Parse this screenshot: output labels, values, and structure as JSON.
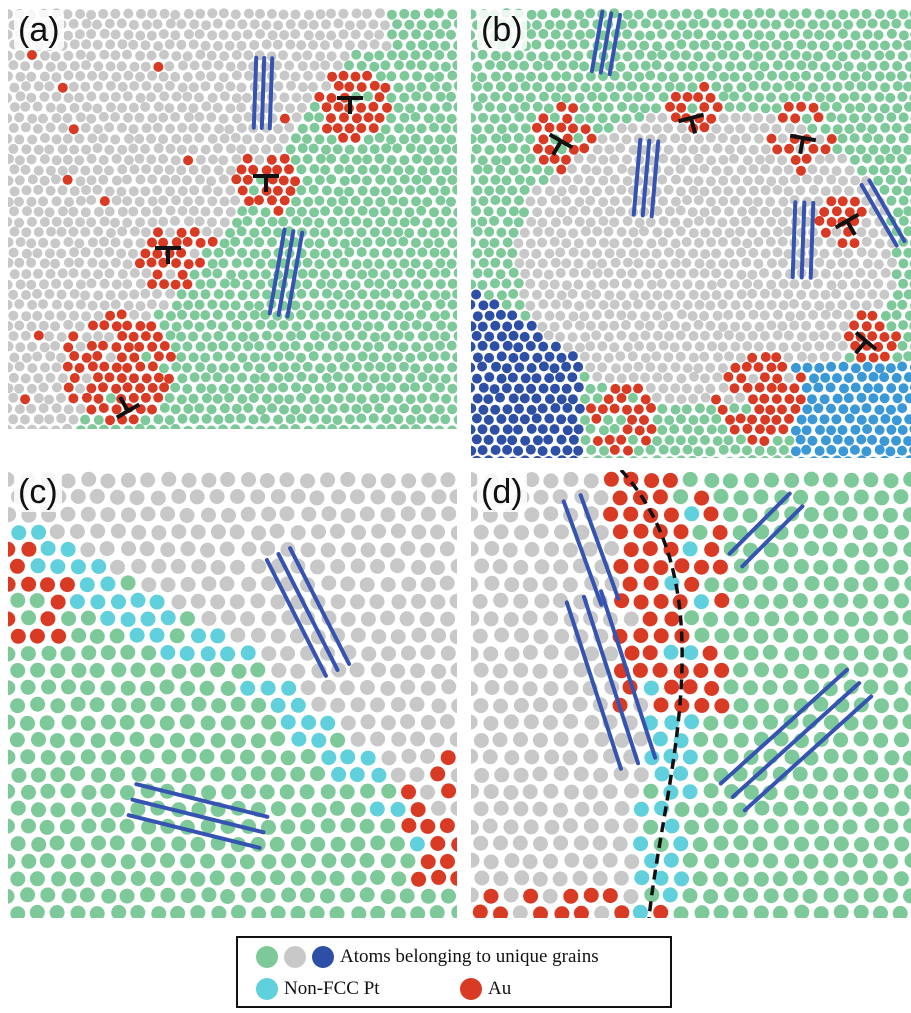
{
  "panels": [
    {
      "label": "(a)"
    },
    {
      "label": "(b)"
    },
    {
      "label": "(c)"
    },
    {
      "label": "(d)"
    }
  ],
  "legend": {
    "grains_label": "Atoms belonging to unique grains",
    "nonfcc_label": "Non-FCC Pt",
    "au_label": "Au"
  },
  "colors": {
    "grain_green": "#7ec99a",
    "grain_gray": "#c8c8c8",
    "grain_blue": "#2d4fa6",
    "grain_lightblue": "#3a98d6",
    "nonfcc_cyan": "#5fd0dc",
    "au_red": "#d93a24",
    "line_blue": "#3553b0"
  }
}
